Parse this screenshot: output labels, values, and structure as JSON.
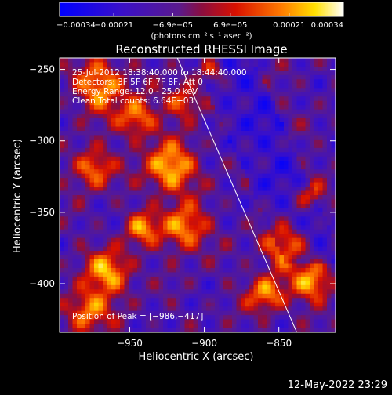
{
  "chart_data": {
    "type": "heatmap",
    "title": "Reconstructed RHESSI Image",
    "xlabel": "Heliocentric X (arcsec)",
    "ylabel": "Heliocentric Y (arcsec)",
    "xlim": [
      -997,
      -812
    ],
    "ylim": [
      -434,
      -242
    ],
    "x_ticks": [
      -950,
      -900,
      -850
    ],
    "x_tick_labels": [
      "−950",
      "−900",
      "−850"
    ],
    "y_ticks": [
      -250,
      -300,
      -350,
      -400
    ],
    "y_tick_labels": [
      "−250",
      "−300",
      "−350",
      "−400"
    ],
    "colorbar": {
      "min": -0.00034,
      "max": 0.00034,
      "ticks": [
        -0.00034,
        -0.00021,
        -6.9e-05,
        6.9e-05,
        0.00021,
        0.00034
      ],
      "tick_labels": [
        "−0.00034",
        "−0.00021",
        "−6.9e−05",
        "6.9e−05",
        "0.00021",
        "0.00034"
      ],
      "unit_label": "(photons cm⁻² s⁻¹ asec⁻²)",
      "colormap": "blue-purple-red-yellow-white"
    },
    "annotations": [
      "25-Jul-2012 18:38:40.000 to 18:44:40.000",
      "Detectors: 3F 5F 6F 7F 8F, Att 0",
      "Energy Range: 12.0 - 25.0 keV",
      "Clean    Total counts: 6.64E+03"
    ],
    "peak_label": "Position of Peak = [−986,−417]",
    "limb_line": {
      "x": [
        -918,
        -838
      ],
      "y": [
        -242,
        -434
      ]
    },
    "grid": false
  },
  "footer": {
    "timestamp": "12-May-2022 23:29"
  }
}
